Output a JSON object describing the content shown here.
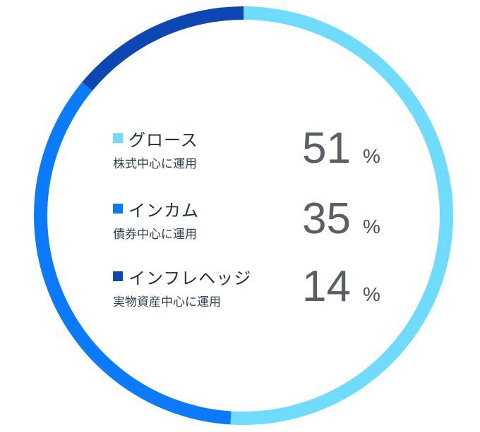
{
  "chart_data": {
    "type": "pie",
    "variant": "donut",
    "series": [
      {
        "name": "グロース",
        "description": "株式中心に運用",
        "value": 51,
        "unit": "%",
        "color": "#6fdcff"
      },
      {
        "name": "インカム",
        "description": "債券中心に運用",
        "value": 35,
        "unit": "%",
        "color": "#0a7bff"
      },
      {
        "name": "インフレヘッジ",
        "description": "実物資産中心に運用",
        "value": 14,
        "unit": "%",
        "color": "#0d47b3"
      }
    ]
  }
}
